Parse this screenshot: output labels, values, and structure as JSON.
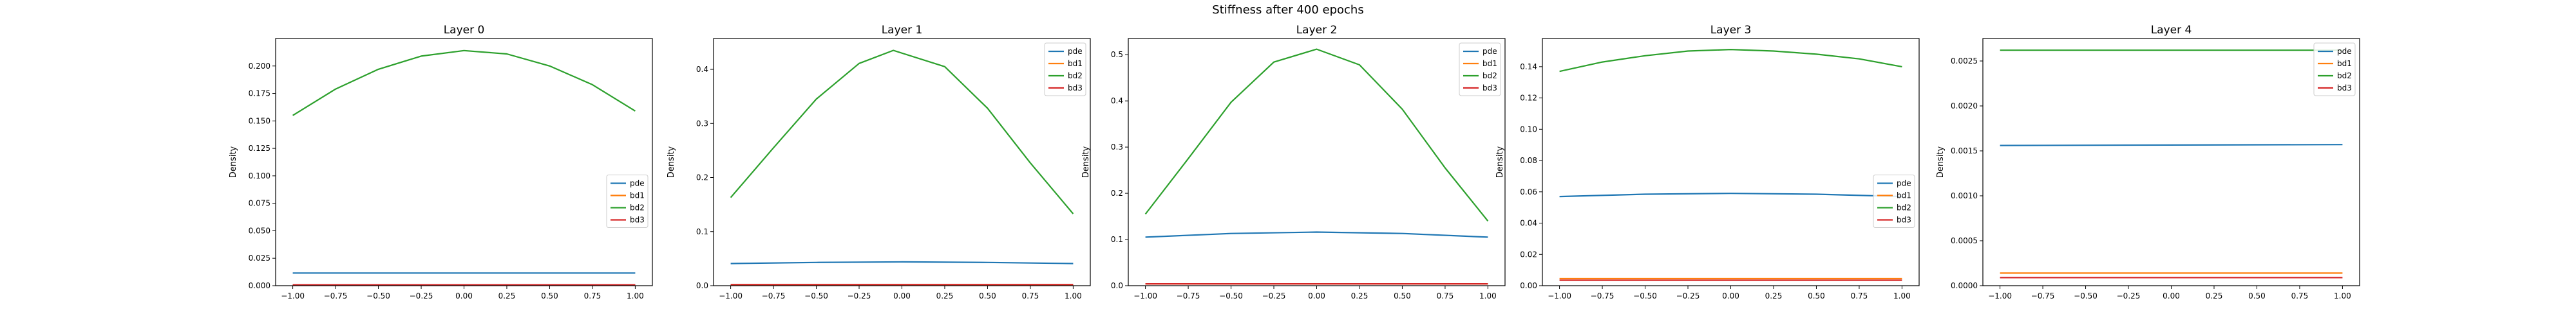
{
  "suptitle": "Stiffness after 400 epochs",
  "chart_data": [
    {
      "type": "line",
      "title": "Layer 0",
      "xlabel": "",
      "ylabel": "Density",
      "xlim": [
        -1.1,
        1.1
      ],
      "ylim": [
        0,
        0.225
      ],
      "xticks": [
        "−1.00",
        "−0.75",
        "−0.50",
        "−0.25",
        "0.00",
        "0.25",
        "0.50",
        "0.75",
        "1.00"
      ],
      "yticks": [
        "0.000",
        "0.025",
        "0.050",
        "0.075",
        "0.100",
        "0.125",
        "0.150",
        "0.175",
        "0.200"
      ],
      "ytick_values": [
        0,
        0.025,
        0.05,
        0.075,
        0.1,
        0.125,
        0.15,
        0.175,
        0.2
      ],
      "legend_position": "center-right",
      "series": [
        {
          "name": "pde",
          "color": "#1f77b4",
          "x": [
            -1.0,
            1.0
          ],
          "y": [
            0.0115,
            0.0115
          ]
        },
        {
          "name": "bd1",
          "color": "#ff7f0e",
          "x": [
            -1.0,
            1.0
          ],
          "y": [
            0.0008,
            0.0008
          ]
        },
        {
          "name": "bd2",
          "color": "#2ca02c",
          "x": [
            -1.0,
            -0.75,
            -0.5,
            -0.25,
            0.0,
            0.25,
            0.5,
            0.75,
            1.0
          ],
          "y": [
            0.155,
            0.179,
            0.197,
            0.209,
            0.214,
            0.211,
            0.2,
            0.183,
            0.159
          ]
        },
        {
          "name": "bd3",
          "color": "#d62728",
          "x": [
            -1.0,
            1.0
          ],
          "y": [
            0.0008,
            0.0008
          ]
        }
      ]
    },
    {
      "type": "line",
      "title": "Layer 1",
      "xlabel": "",
      "ylabel": "Density",
      "xlim": [
        -1.1,
        1.1
      ],
      "ylim": [
        0,
        0.457
      ],
      "xticks": [
        "−1.00",
        "−0.75",
        "−0.50",
        "−0.25",
        "0.00",
        "0.25",
        "0.50",
        "0.75",
        "1.00"
      ],
      "yticks": [
        "0.0",
        "0.1",
        "0.2",
        "0.3",
        "0.4"
      ],
      "ytick_values": [
        0,
        0.1,
        0.2,
        0.3,
        0.4
      ],
      "legend_position": "top-right",
      "series": [
        {
          "name": "pde",
          "color": "#1f77b4",
          "x": [
            -1.0,
            -0.5,
            0.0,
            0.5,
            1.0
          ],
          "y": [
            0.041,
            0.043,
            0.044,
            0.043,
            0.041
          ]
        },
        {
          "name": "bd1",
          "color": "#ff7f0e",
          "x": [
            -1.0,
            1.0
          ],
          "y": [
            0.002,
            0.002
          ]
        },
        {
          "name": "bd2",
          "color": "#2ca02c",
          "x": [
            -1.0,
            -0.75,
            -0.5,
            -0.25,
            -0.05,
            0.25,
            0.5,
            0.75,
            1.0
          ],
          "y": [
            0.163,
            0.255,
            0.345,
            0.411,
            0.435,
            0.405,
            0.328,
            0.227,
            0.133
          ]
        },
        {
          "name": "bd3",
          "color": "#d62728",
          "x": [
            -1.0,
            1.0
          ],
          "y": [
            0.002,
            0.002
          ]
        }
      ]
    },
    {
      "type": "line",
      "title": "Layer 2",
      "xlabel": "",
      "ylabel": "Density",
      "xlim": [
        -1.1,
        1.1
      ],
      "ylim": [
        0,
        0.535
      ],
      "xticks": [
        "−1.00",
        "−0.75",
        "−0.50",
        "−0.25",
        "0.00",
        "0.25",
        "0.50",
        "0.75",
        "1.00"
      ],
      "yticks": [
        "0.0",
        "0.1",
        "0.2",
        "0.3",
        "0.4",
        "0.5"
      ],
      "ytick_values": [
        0,
        0.1,
        0.2,
        0.3,
        0.4,
        0.5
      ],
      "legend_position": "top-right",
      "series": [
        {
          "name": "pde",
          "color": "#1f77b4",
          "x": [
            -1.0,
            -0.5,
            0.0,
            0.5,
            1.0
          ],
          "y": [
            0.105,
            0.113,
            0.116,
            0.113,
            0.105
          ]
        },
        {
          "name": "bd1",
          "color": "#ff7f0e",
          "x": [
            -1.0,
            1.0
          ],
          "y": [
            0.004,
            0.004
          ]
        },
        {
          "name": "bd2",
          "color": "#2ca02c",
          "x": [
            -1.0,
            -0.75,
            -0.5,
            -0.25,
            0.0,
            0.25,
            0.5,
            0.75,
            1.0
          ],
          "y": [
            0.155,
            0.275,
            0.397,
            0.484,
            0.512,
            0.478,
            0.382,
            0.255,
            0.14
          ]
        },
        {
          "name": "bd3",
          "color": "#d62728",
          "x": [
            -1.0,
            1.0
          ],
          "y": [
            0.004,
            0.004
          ]
        }
      ]
    },
    {
      "type": "line",
      "title": "Layer 3",
      "xlabel": "",
      "ylabel": "Density",
      "xlim": [
        -1.1,
        1.1
      ],
      "ylim": [
        0,
        0.158
      ],
      "xticks": [
        "−1.00",
        "−0.75",
        "−0.50",
        "−0.25",
        "0.00",
        "0.25",
        "0.50",
        "0.75",
        "1.00"
      ],
      "yticks": [
        "0.00",
        "0.02",
        "0.04",
        "0.06",
        "0.08",
        "0.10",
        "0.12",
        "0.14"
      ],
      "ytick_values": [
        0,
        0.02,
        0.04,
        0.06,
        0.08,
        0.1,
        0.12,
        0.14
      ],
      "legend_position": "center-right",
      "series": [
        {
          "name": "pde",
          "color": "#1f77b4",
          "x": [
            -1.0,
            -0.5,
            0.0,
            0.5,
            1.0
          ],
          "y": [
            0.057,
            0.0585,
            0.059,
            0.0585,
            0.057
          ]
        },
        {
          "name": "bd1",
          "color": "#ff7f0e",
          "x": [
            -1.0,
            1.0
          ],
          "y": [
            0.0045,
            0.0045
          ]
        },
        {
          "name": "bd2",
          "color": "#2ca02c",
          "x": [
            -1.0,
            -0.75,
            -0.5,
            -0.25,
            0.0,
            0.25,
            0.5,
            0.75,
            1.0
          ],
          "y": [
            0.137,
            0.143,
            0.147,
            0.15,
            0.151,
            0.15,
            0.148,
            0.145,
            0.14
          ]
        },
        {
          "name": "bd3",
          "color": "#d62728",
          "x": [
            -1.0,
            1.0
          ],
          "y": [
            0.0035,
            0.0035
          ]
        }
      ]
    },
    {
      "type": "line",
      "title": "Layer 4",
      "xlabel": "",
      "ylabel": "Density",
      "xlim": [
        -1.1,
        1.1
      ],
      "ylim": [
        0,
        0.00275
      ],
      "xticks": [
        "−1.00",
        "−0.75",
        "−0.50",
        "−0.25",
        "0.00",
        "0.25",
        "0.50",
        "0.75",
        "1.00"
      ],
      "yticks": [
        "0.0000",
        "0.0005",
        "0.0010",
        "0.0015",
        "0.0020",
        "0.0025"
      ],
      "ytick_values": [
        0,
        0.0005,
        0.001,
        0.0015,
        0.002,
        0.0025
      ],
      "legend_position": "top-right",
      "series": [
        {
          "name": "pde",
          "color": "#1f77b4",
          "x": [
            -1.0,
            1.0
          ],
          "y": [
            0.00156,
            0.00157
          ]
        },
        {
          "name": "bd1",
          "color": "#ff7f0e",
          "x": [
            -1.0,
            1.0
          ],
          "y": [
            0.00014,
            0.00014
          ]
        },
        {
          "name": "bd2",
          "color": "#2ca02c",
          "x": [
            -1.0,
            1.0
          ],
          "y": [
            0.00262,
            0.00262
          ]
        },
        {
          "name": "bd3",
          "color": "#d62728",
          "x": [
            -1.0,
            1.0
          ],
          "y": [
            9e-05,
            9e-05
          ]
        }
      ]
    }
  ]
}
